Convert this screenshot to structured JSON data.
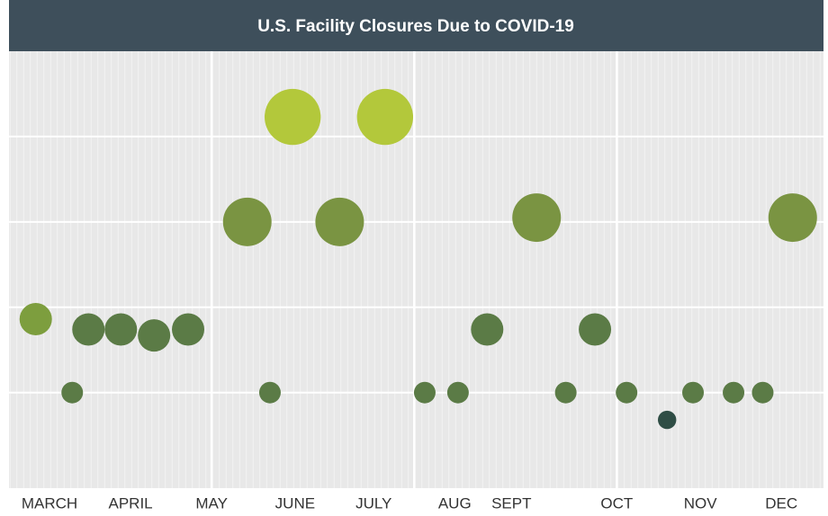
{
  "chart_data": {
    "type": "scatter",
    "title": "U.S. Facility Closures Due to COVID-19",
    "x": [
      -0.17,
      0.28,
      0.48,
      0.88,
      1.29,
      1.71,
      2.44,
      2.72,
      3.0,
      3.58,
      4.14,
      4.63,
      5.04,
      5.4,
      6.01,
      6.37,
      6.73,
      7.12,
      7.62,
      7.94,
      8.44,
      8.8,
      9.17
    ],
    "values": [
      1.86,
      1,
      1.74,
      1.74,
      1.67,
      1.74,
      3,
      1,
      4.23,
      3,
      4.23,
      1,
      1,
      1.74,
      3.05,
      1,
      1.74,
      1,
      0.68,
      1,
      1,
      1,
      3.05
    ],
    "sizes": [
      1.5,
      1,
      1.5,
      1.5,
      1.5,
      1.5,
      2.25,
      1,
      2.6,
      2.25,
      2.6,
      1,
      1,
      1.5,
      2.25,
      1,
      1.5,
      1,
      0.85,
      1,
      1,
      1,
      2.25
    ],
    "colors": [
      "#7d9e3e",
      "#5b7b46",
      "#5b7b46",
      "#5b7b46",
      "#5b7b46",
      "#5b7b46",
      "#7a9442",
      "#5b7b46",
      "#b3c83b",
      "#7a9442",
      "#b3c83b",
      "#5b7b46",
      "#5b7b46",
      "#5b7b46",
      "#7a9442",
      "#5b7b46",
      "#5b7b46",
      "#5b7b46",
      "#2f4d45",
      "#5b7b46",
      "#5b7b46",
      "#5b7b46",
      "#7a9442"
    ],
    "xlim": [
      -0.5,
      9.55
    ],
    "ylim": [
      -0.12,
      5
    ],
    "xticks": [
      {
        "value": 0,
        "label": "MARCH"
      },
      {
        "value": 1,
        "label": "APRIL"
      },
      {
        "value": 2,
        "label": "MAY"
      },
      {
        "value": 3.03,
        "label": "JUNE"
      },
      {
        "value": 4,
        "label": "JULY"
      },
      {
        "value": 5,
        "label": "AUG"
      },
      {
        "value": 5.7,
        "label": "SEPT"
      },
      {
        "value": 7,
        "label": "OCT"
      },
      {
        "value": 8.03,
        "label": "NOV"
      },
      {
        "value": 9.03,
        "label": "DEC"
      }
    ],
    "xgrid": [
      2,
      4.5,
      7
    ],
    "ygrid": [
      1,
      2,
      3,
      4
    ]
  }
}
